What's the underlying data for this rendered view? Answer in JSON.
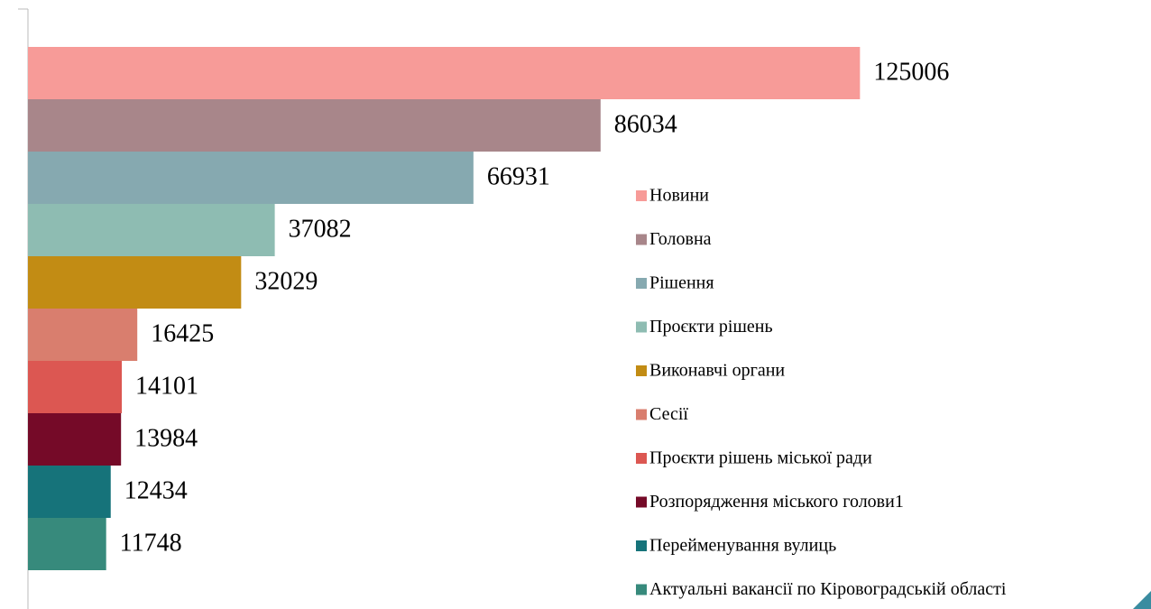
{
  "chart_data": {
    "type": "bar",
    "orientation": "horizontal",
    "categories": [
      "Новини",
      "Головна",
      "Рішення",
      "Проєкти рішень",
      "Виконавчі органи",
      "Сесії",
      "Проєкти рішень міської ради",
      "Розпорядження міського голови1",
      "Перейменування вулиць",
      "Актуальні вакансії по Кіровоградській області"
    ],
    "values": [
      125006,
      86034,
      66931,
      37082,
      32029,
      16425,
      14101,
      13984,
      12434,
      11748
    ],
    "colors": [
      "#f79b98",
      "#a8868a",
      "#86a9b0",
      "#8ebcb2",
      "#c28c14",
      "#d97e6e",
      "#dc5752",
      "#750a28",
      "#16737a",
      "#378a7c"
    ],
    "xlim": [
      0,
      140000
    ],
    "legend": "right"
  }
}
